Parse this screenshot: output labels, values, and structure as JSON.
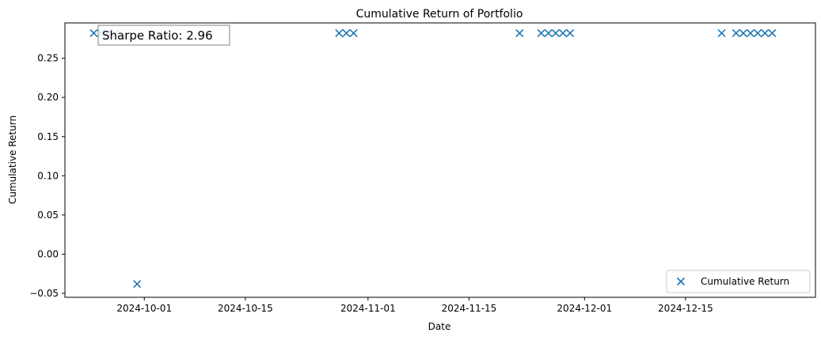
{
  "chart_data": {
    "type": "scatter",
    "title": "Cumulative Return of Portfolio",
    "xlabel": "Date",
    "ylabel": "Cumulative Return",
    "x_axis_type": "date",
    "xlim": [
      "2024-09-20",
      "2025-01-02"
    ],
    "ylim": [
      -0.055,
      0.295
    ],
    "x_ticks": [
      "2024-10-01",
      "2024-10-15",
      "2024-11-01",
      "2024-11-15",
      "2024-12-01",
      "2024-12-15"
    ],
    "y_ticks": [
      -0.05,
      0.0,
      0.05,
      0.1,
      0.15,
      0.2,
      0.25
    ],
    "y_tick_labels": [
      "−0.05",
      "0.00",
      "0.05",
      "0.10",
      "0.15",
      "0.20",
      "0.25"
    ],
    "grid": false,
    "legend_placement": "lower-right",
    "annotation": "Sharpe Ratio: 2.96",
    "series": [
      {
        "name": "Cumulative Return",
        "marker": "x",
        "color": "#1f77b4",
        "points": [
          {
            "x": "2024-09-24",
            "y": 0.282
          },
          {
            "x": "2024-09-25",
            "y": 0.282
          },
          {
            "x": "2024-09-26",
            "y": 0.282
          },
          {
            "x": "2024-09-27",
            "y": 0.282
          },
          {
            "x": "2024-09-30",
            "y": -0.038
          },
          {
            "x": "2024-10-28",
            "y": 0.282
          },
          {
            "x": "2024-10-29",
            "y": 0.282
          },
          {
            "x": "2024-10-30",
            "y": 0.282
          },
          {
            "x": "2024-11-22",
            "y": 0.282
          },
          {
            "x": "2024-11-25",
            "y": 0.282
          },
          {
            "x": "2024-11-26",
            "y": 0.282
          },
          {
            "x": "2024-11-27",
            "y": 0.282
          },
          {
            "x": "2024-11-28",
            "y": 0.282
          },
          {
            "x": "2024-11-29",
            "y": 0.282
          },
          {
            "x": "2024-12-20",
            "y": 0.282
          },
          {
            "x": "2024-12-22",
            "y": 0.282
          },
          {
            "x": "2024-12-23",
            "y": 0.282
          },
          {
            "x": "2024-12-24",
            "y": 0.282
          },
          {
            "x": "2024-12-25",
            "y": 0.282
          },
          {
            "x": "2024-12-26",
            "y": 0.282
          },
          {
            "x": "2024-12-27",
            "y": 0.282
          }
        ]
      }
    ]
  }
}
